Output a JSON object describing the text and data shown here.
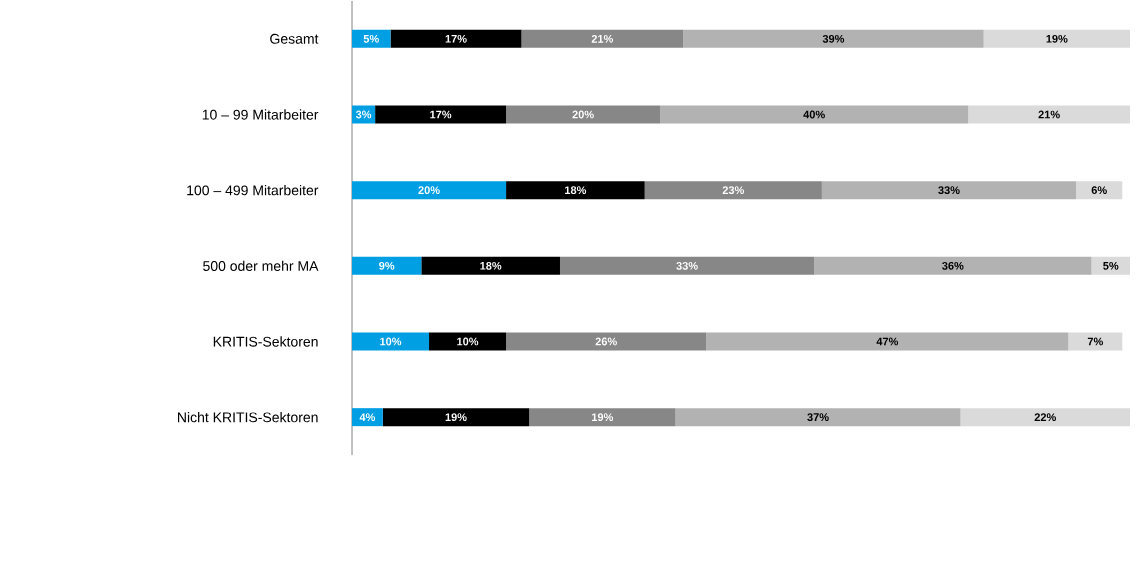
{
  "chart_data": {
    "type": "bar",
    "orientation": "horizontal",
    "stacked": true,
    "categories": [
      "Gesamt",
      "10 – 99 Mitarbeiter",
      "100 – 499 Mitarbeiter",
      "500 oder mehr MA",
      "KRITIS-Sektoren",
      "Nicht KRITIS-Sektoren"
    ],
    "series": [
      {
        "color": "#009fe3",
        "values": [
          5,
          3,
          20,
          9,
          10,
          4
        ],
        "value_labels": [
          "5%",
          "3%",
          "20%",
          "9%",
          "10%",
          "4%"
        ]
      },
      {
        "color": "#000000",
        "values": [
          17,
          17,
          18,
          18,
          10,
          19
        ],
        "value_labels": [
          "17%",
          "17%",
          "18%",
          "18%",
          "10%",
          "19%"
        ]
      },
      {
        "color": "#878787",
        "values": [
          21,
          20,
          23,
          33,
          26,
          19
        ],
        "value_labels": [
          "21%",
          "20%",
          "23%",
          "33%",
          "26%",
          "19%"
        ]
      },
      {
        "color": "#b2b2b2",
        "values": [
          39,
          40,
          33,
          36,
          47,
          37
        ],
        "value_labels": [
          "39%",
          "40%",
          "33%",
          "36%",
          "47%",
          "37%"
        ]
      },
      {
        "color": "#dadada",
        "values": [
          19,
          21,
          6,
          5,
          7,
          22
        ],
        "value_labels": [
          "19%",
          "21%",
          "6%",
          "5%",
          "7%",
          "22%"
        ]
      }
    ]
  }
}
